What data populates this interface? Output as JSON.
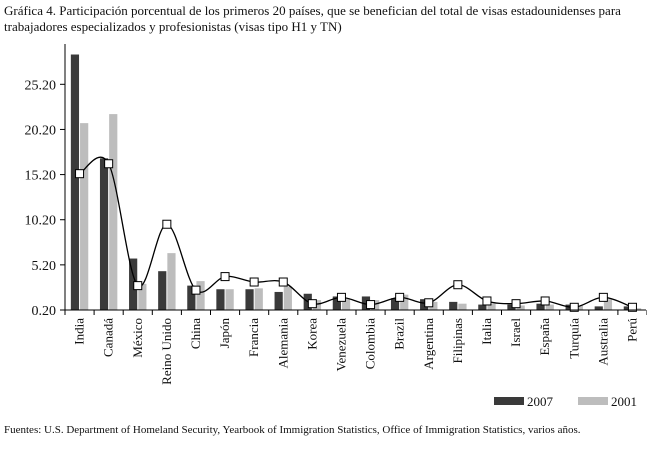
{
  "title": "Gráfica 4.  Participación porcentual de los primeros 20 países, que se benefician del total de visas estadounidenses para trabajadores especializados y profesionistas (visas tipo H1 y TN)",
  "source": "Fuentes: U.S. Department of Homeland Security, Yearbook of Immigration Statistics, Office of Immigration Statistics, varios años.",
  "colors": {
    "series_2007": "#3a3a3a",
    "series_2001": "#bdbdbd",
    "line": "#000000",
    "marker_fill": "#ffffff"
  },
  "chart_data": {
    "type": "bar",
    "title": "Participación porcentual de los primeros 20 países",
    "xlabel": "",
    "ylabel": "",
    "ylim": [
      0.2,
      29.0
    ],
    "yticks": [
      "0.20",
      "5.20",
      "10.20",
      "15.20",
      "20.20",
      "25.20"
    ],
    "ytick_values": [
      0.2,
      5.2,
      10.2,
      15.2,
      20.2,
      25.2
    ],
    "categories": [
      "India",
      "Canadá",
      "México",
      "Reino Unido",
      "China",
      "Japón",
      "Francia",
      "Alemania",
      "Korea",
      "Venezuela",
      "Colombia",
      "Brazil",
      "Argentina",
      "Filipinas",
      "Italia",
      "Israel",
      "España",
      "Turquía",
      "Australia",
      "Perú"
    ],
    "series": [
      {
        "name": "2007",
        "values": [
          28.5,
          17.0,
          5.9,
          4.5,
          2.9,
          2.5,
          2.5,
          2.2,
          2.0,
          1.7,
          1.7,
          1.5,
          1.4,
          1.1,
          0.8,
          0.8,
          0.9,
          0.8,
          0.6,
          0.6
        ]
      },
      {
        "name": "2001",
        "values": [
          20.9,
          21.9,
          3.1,
          6.5,
          3.4,
          2.5,
          2.6,
          2.8,
          1.3,
          1.5,
          1.3,
          1.9,
          1.1,
          0.9,
          0.9,
          0.7,
          0.8,
          0.7,
          1.4,
          0.4
        ]
      }
    ],
    "line_values": [
      15.3,
      16.4,
      2.9,
      9.7,
      2.4,
      3.9,
      3.3,
      3.3,
      0.9,
      1.6,
      0.8,
      1.6,
      1.0,
      3.0,
      1.2,
      0.9,
      1.2,
      0.5,
      1.6,
      0.5
    ],
    "legend": {
      "position": "bottom-right",
      "entries": [
        "2007",
        "2001"
      ]
    }
  }
}
